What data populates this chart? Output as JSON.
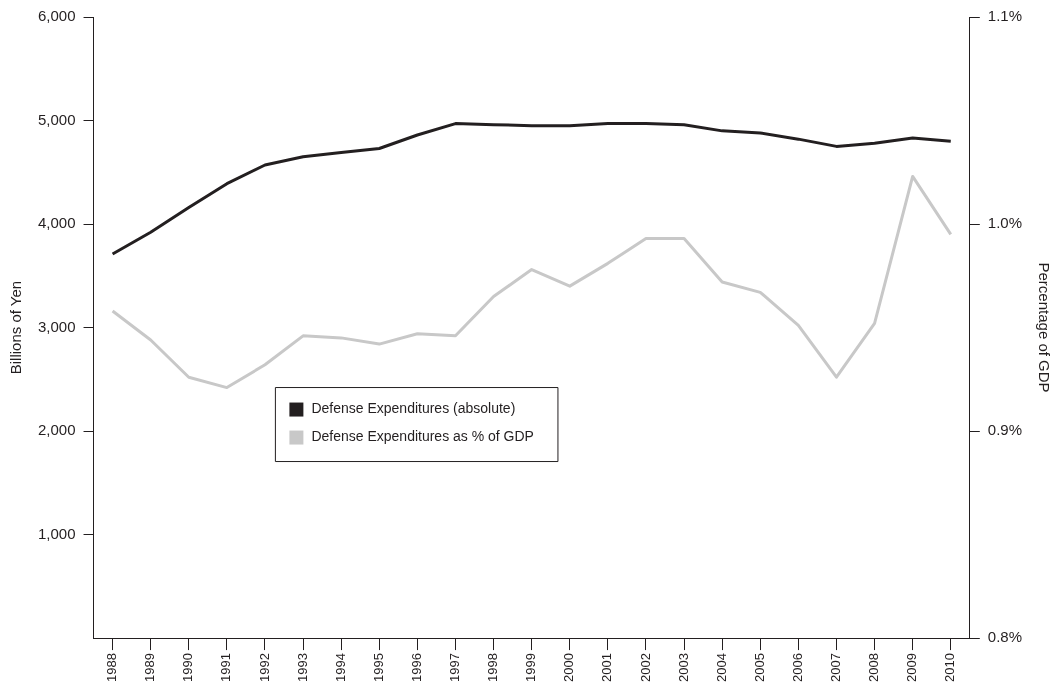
{
  "chart_data": {
    "type": "line",
    "xlabel": null,
    "ylabel": "Billions of Yen",
    "y2label": "Percentage of GDP",
    "categories": [
      "1988",
      "1989",
      "1990",
      "1991",
      "1992",
      "1993",
      "1994",
      "1995",
      "1996",
      "1997",
      "1998",
      "1999",
      "2000",
      "2001",
      "2002",
      "2003",
      "2004",
      "2005",
      "2006",
      "2007",
      "2008",
      "2009",
      "2010"
    ],
    "series": [
      {
        "name": "Defense Expenditures (absolute)",
        "color": "#231f20",
        "values": [
          3710,
          3920,
          4160,
          4390,
          4570,
          4650,
          4690,
          4730,
          4860,
          4970,
          4960,
          4950,
          4950,
          4970,
          4970,
          4960,
          4900,
          4880,
          4820,
          4750,
          4780,
          4830,
          4800
        ]
      },
      {
        "name": "Defense Expenditures as % of GDP",
        "color": "#c8c8c8",
        "axis": "y2",
        "values": [
          0.958,
          0.944,
          0.926,
          0.921,
          0.932,
          0.946,
          0.945,
          0.942,
          0.947,
          0.946,
          0.965,
          0.978,
          0.97,
          0.981,
          0.993,
          0.993,
          0.972,
          0.967,
          0.951,
          0.926,
          0.952,
          1.023,
          0.995
        ]
      }
    ],
    "ylim": [
      0,
      6000
    ],
    "yticks": [
      {
        "value": 1000,
        "label": "1,000"
      },
      {
        "value": 2000,
        "label": "2,000"
      },
      {
        "value": 3000,
        "label": "3,000"
      },
      {
        "value": 4000,
        "label": "4,000"
      },
      {
        "value": 5000,
        "label": "5,000"
      },
      {
        "value": 6000,
        "label": "6,000"
      }
    ],
    "y2lim": [
      0.8,
      1.1
    ],
    "y2ticks": [
      {
        "value": 0.8,
        "label": "0.8%"
      },
      {
        "value": 0.9,
        "label": "0.9%"
      },
      {
        "value": 1.0,
        "label": "1.0%"
      },
      {
        "value": 1.1,
        "label": "1.1%"
      }
    ],
    "grid": false,
    "legend": "center",
    "marker": "none",
    "line_style": "solid"
  }
}
